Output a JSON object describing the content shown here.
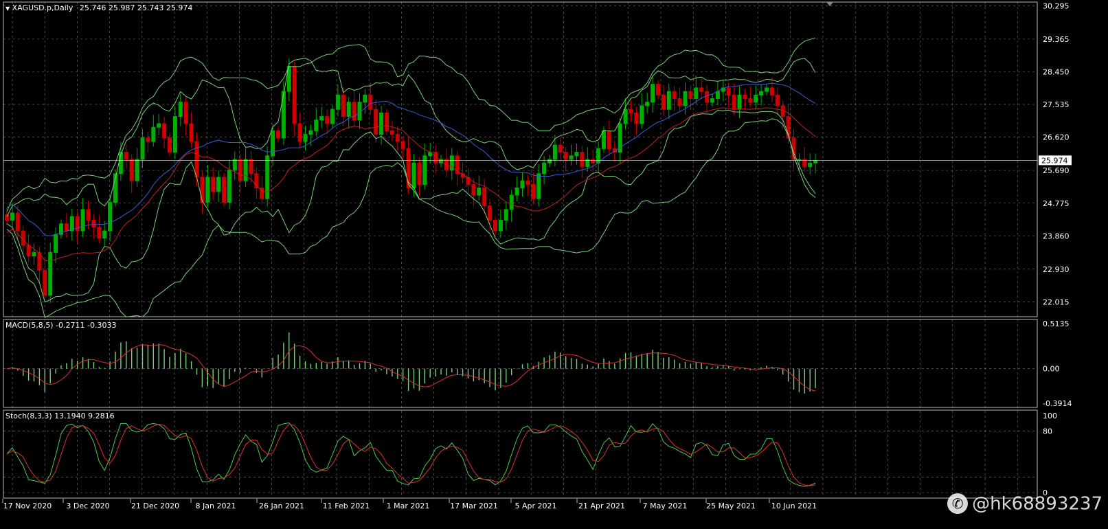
{
  "symbol_header": {
    "symbol": "XAGUSD.p,Daily",
    "ohlc": "25.746 25.987 25.743 25.974"
  },
  "macd_header": {
    "label": "MACD(5,8,5)",
    "values": "-0.2711 -0.3033"
  },
  "stoch_header": {
    "label": "Stoch(8,3,3)",
    "values": "13.1940 9.2816"
  },
  "current_price_label": "25.974",
  "watermark": "@hk68893237",
  "colors": {
    "background": "#000000",
    "grid": "#c0c0c0",
    "bull": "#00b000",
    "bear": "#d00000",
    "band": "#7ad27a",
    "ma_blue": "#3a5bd9",
    "ma_red": "#c02020",
    "macd_hist": "#7ad27a",
    "macd_signal": "#e03030",
    "stoch_main": "#4ccc4c",
    "stoch_signal": "#e03030"
  },
  "chart_data": [
    {
      "type": "candlestick",
      "name": "price",
      "y_ticks": [
        "30.295",
        "29.365",
        "28.450",
        "27.535",
        "26.620",
        "25.690",
        "24.775",
        "23.860",
        "22.930",
        "22.015"
      ],
      "ylim": [
        21.6,
        30.4
      ],
      "x_labels": [
        "17 Nov 2020",
        "3 Dec 2020",
        "21 Dec 2020",
        "8 Jan 2021",
        "26 Jan 2021",
        "11 Feb 2021",
        "1 Mar 2021",
        "17 Mar 2021",
        "5 Apr 2021",
        "21 Apr 2021",
        "7 May 2021",
        "25 May 2021",
        "10 Jun 2021"
      ],
      "close": [
        24.3,
        24.5,
        24.0,
        23.6,
        23.3,
        23.4,
        22.9,
        22.2,
        23.4,
        23.9,
        24.2,
        24.0,
        24.4,
        24.0,
        24.6,
        24.3,
        24.1,
        23.8,
        24.0,
        24.8,
        25.6,
        26.2,
        26.0,
        25.4,
        26.0,
        26.6,
        26.5,
        26.9,
        27.0,
        26.6,
        26.2,
        27.2,
        27.6,
        27.0,
        26.5,
        25.5,
        24.8,
        25.5,
        25.1,
        25.5,
        24.8,
        25.7,
        26.0,
        25.4,
        26.0,
        25.6,
        25.2,
        24.9,
        26.1,
        26.8,
        26.6,
        27.9,
        28.6,
        27.0,
        26.5,
        26.7,
        26.8,
        27.1,
        27.2,
        27.0,
        27.4,
        27.8,
        27.2,
        27.6,
        27.1,
        27.6,
        27.8,
        27.4,
        26.7,
        27.3,
        26.8,
        26.7,
        26.5,
        26.3,
        25.2,
        25.9,
        25.3,
        26.1,
        26.2,
        25.9,
        26.0,
        25.7,
        26.1,
        25.6,
        25.5,
        25.3,
        25.0,
        25.2,
        24.7,
        24.3,
        24.0,
        24.3,
        24.6,
        25.0,
        25.2,
        25.4,
        25.3,
        24.9,
        25.6,
        25.9,
        26.0,
        26.4,
        26.2,
        26.0,
        26.1,
        26.2,
        25.8,
        26.0,
        25.9,
        26.3,
        26.8,
        26.3,
        26.2,
        27.0,
        27.4,
        27.3,
        27.0,
        27.5,
        27.6,
        28.1,
        27.8,
        27.4,
        27.9,
        27.7,
        27.5,
        27.9,
        27.7,
        28.0,
        27.9,
        27.6,
        27.7,
        27.9,
        28.0,
        27.8,
        27.4,
        27.8,
        27.7,
        27.6,
        27.8,
        27.9,
        28.0,
        27.8,
        27.5,
        27.2,
        26.6,
        26.0,
        26.0,
        25.8,
        25.9,
        25.97
      ]
    },
    {
      "type": "histogram_line",
      "name": "MACD(5,8,5)",
      "y_ticks": [
        "0.5135",
        "0.00",
        "-0.3914"
      ],
      "ylim": [
        -0.44,
        0.56
      ]
    },
    {
      "type": "line",
      "name": "Stoch(8,3,3)",
      "y_ticks": [
        "100",
        "80",
        "0"
      ],
      "ylim": [
        0,
        100
      ]
    }
  ]
}
